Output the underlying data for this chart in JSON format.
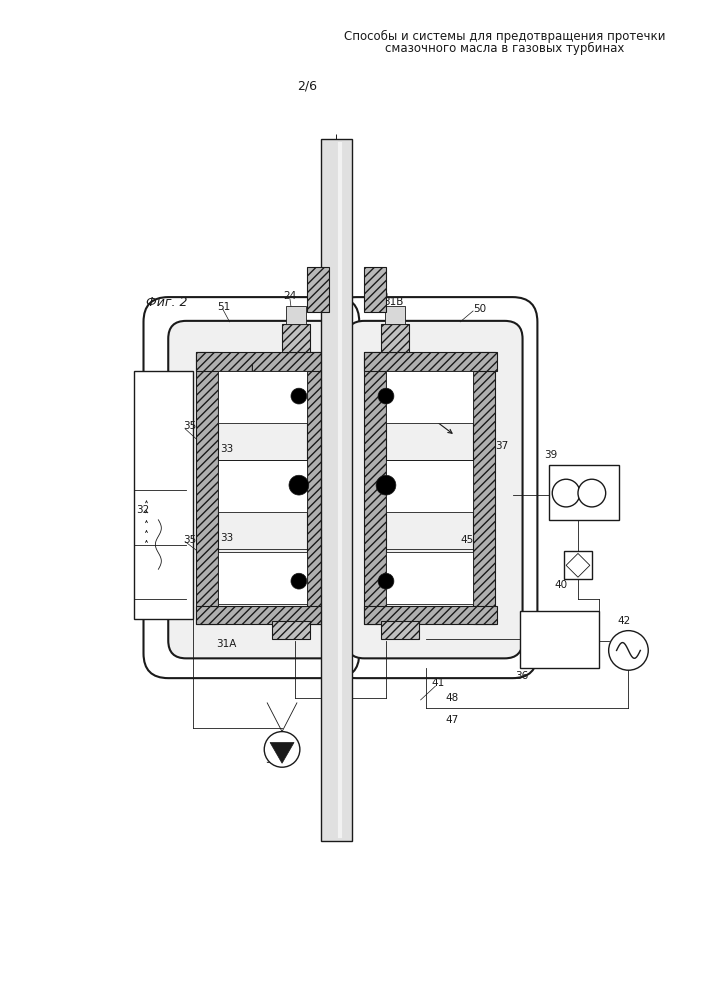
{
  "title_line1": "Способы и системы для предотвращения протечки",
  "title_line2": "смазочного масла в газовых турбинах",
  "page_label": "2/6",
  "fig_label": "Фиг. 2",
  "bg_color": "#ffffff",
  "drawing_color": "#1a1a1a",
  "title_fontsize": 8.5,
  "label_fontsize": 7.5
}
